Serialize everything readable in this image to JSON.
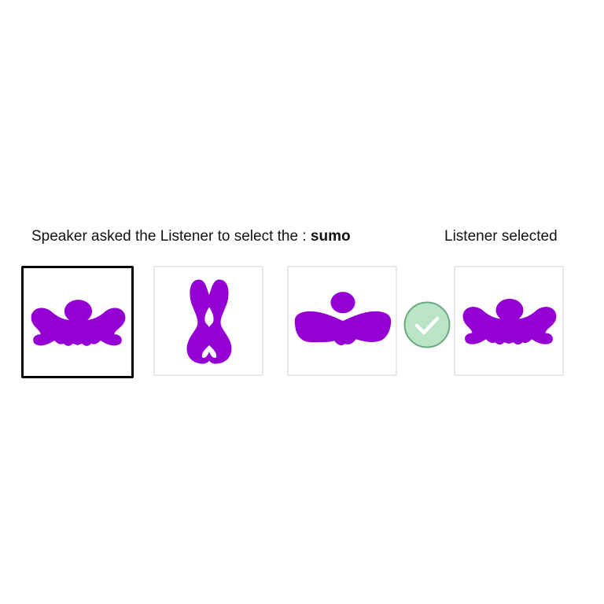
{
  "prompt": {
    "prefix": "Speaker asked the Listener to select the : ",
    "target_word": "sumo"
  },
  "result": {
    "label": "Listener selected",
    "status_icon": "check-circle-icon",
    "status_color": "#b9e4c6"
  },
  "shape_color": "#9400d3",
  "candidates": [
    {
      "shape": "sumo-figure",
      "highlighted": true
    },
    {
      "shape": "hourglass-figure",
      "highlighted": false
    },
    {
      "shape": "bowtie-figure",
      "highlighted": false
    }
  ],
  "selection": {
    "shape": "sumo-figure"
  }
}
